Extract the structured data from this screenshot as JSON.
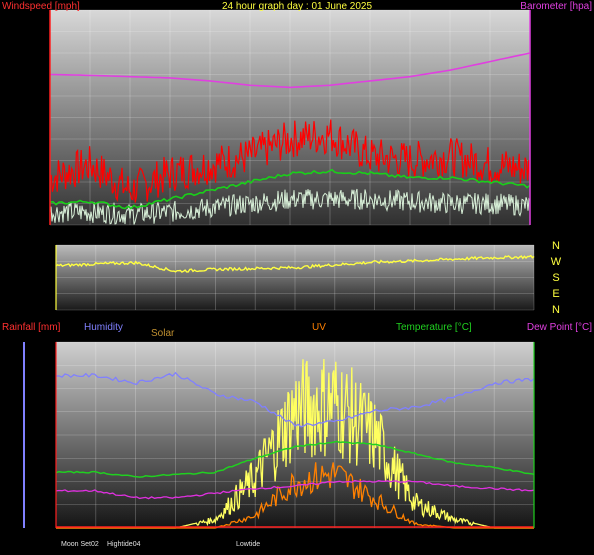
{
  "title": "24 hour graph day : 01 June 2025",
  "colors": {
    "wind": "#ff2020",
    "gust": "#ff0000",
    "avg": "#19d019",
    "low": "#d8f0d8",
    "baro": "#e040e0",
    "dir": "#ffff40",
    "humidity": "#8080ff",
    "solar": "#ffff60",
    "uv": "#ff8000",
    "temp": "#20d020",
    "dew": "#e030e0",
    "rain": "#ff2020"
  },
  "labels": {
    "windspeed": "Windspeed [mph]",
    "barometer": "Barometer [hpa]",
    "rainfall": "Rainfall [mm]",
    "humidity": "Humidity",
    "solar": "Solar",
    "uv": "UV",
    "temperature": "Temperature [°C]",
    "dewpoint": "Dew Point [°C]",
    "compass": [
      "N",
      "W",
      "S",
      "E",
      "N"
    ],
    "bottom_notes": [
      "Moon Set",
      "02",
      "Hightide",
      "04",
      "Lowtide"
    ]
  },
  "chart_data": [
    {
      "type": "line",
      "title": "24 hour graph day : 01 June 2025",
      "ylabel": "Windspeed [mph]",
      "y2label": "Barometer [hpa]",
      "x_ticks": [
        "02",
        "04",
        "06",
        "08",
        "10",
        "12",
        "14",
        "16",
        "18",
        "20",
        "22",
        "00"
      ],
      "ylim": [
        0,
        50
      ],
      "yticks": [
        0,
        5,
        10,
        15,
        20,
        25,
        30,
        35,
        40,
        45,
        50
      ],
      "y2lim": [
        975,
        1025
      ],
      "y2ticks": [
        975,
        980,
        985,
        990,
        995,
        1000,
        1005,
        1010,
        1015,
        1020,
        1025
      ],
      "x_hours": [
        0,
        2,
        4,
        6,
        8,
        10,
        12,
        14,
        16,
        18,
        20,
        22,
        24
      ],
      "series": [
        {
          "key": "gust",
          "values": [
            11,
            14,
            8,
            12,
            14,
            16,
            20,
            21,
            16,
            15,
            16,
            14,
            13
          ]
        },
        {
          "key": "avg",
          "values": [
            5,
            5.5,
            4,
            6,
            8,
            10,
            12,
            12.5,
            12,
            11,
            11,
            10,
            9
          ]
        },
        {
          "key": "low",
          "values": [
            3,
            3,
            2.5,
            3,
            4,
            5,
            6,
            6,
            6,
            5.5,
            5,
            5,
            4.5
          ]
        },
        {
          "key": "baro",
          "values": [
            1010,
            1009.8,
            1009.5,
            1009.2,
            1008.5,
            1007.5,
            1007,
            1007.5,
            1008.5,
            1009.5,
            1011,
            1013,
            1015
          ]
        }
      ]
    },
    {
      "type": "line",
      "ylim": [
        0,
        360
      ],
      "yticks": [
        0,
        90,
        180,
        270,
        360
      ],
      "x_hours": [
        0,
        2,
        4,
        6,
        8,
        10,
        12,
        14,
        16,
        18,
        20,
        22,
        24
      ],
      "series": [
        {
          "key": "dir",
          "values": [
            245,
            255,
            262,
            215,
            225,
            230,
            235,
            250,
            265,
            272,
            282,
            290,
            295
          ]
        }
      ]
    },
    {
      "type": "line",
      "y_humidity_lim": [
        0,
        100
      ],
      "y_humidity_ticks": [
        0,
        10,
        20,
        30,
        40,
        50,
        60,
        70,
        80,
        90,
        100
      ],
      "y_rain_lim": [
        0,
        30
      ],
      "y_rain_ticks": [
        0,
        5,
        10,
        15,
        20,
        25,
        30
      ],
      "y_temp_lim": [
        0,
        40
      ],
      "y_temp_ticks": [
        0,
        5,
        10,
        15,
        20,
        25,
        30,
        35,
        40
      ],
      "x_hours": [
        0,
        2,
        4,
        6,
        8,
        10,
        12,
        14,
        16,
        18,
        20,
        22,
        24
      ],
      "series": [
        {
          "key": "humidity",
          "axis": "humidity",
          "values": [
            82,
            82,
            78,
            83,
            72,
            68,
            55,
            57,
            63,
            65,
            70,
            78,
            80
          ]
        },
        {
          "key": "solar",
          "axis": "temp",
          "values": [
            0,
            0,
            0,
            0,
            2,
            12,
            28,
            30,
            22,
            6,
            2,
            0,
            0
          ]
        },
        {
          "key": "uv",
          "axis": "temp",
          "values": [
            0,
            0,
            0,
            0,
            0,
            3,
            11,
            13,
            7,
            1,
            0,
            0,
            0
          ]
        },
        {
          "key": "temp",
          "axis": "temp",
          "values": [
            12,
            12,
            11,
            11.5,
            12,
            15,
            17.5,
            18.5,
            18,
            16,
            14,
            13,
            11.5
          ]
        },
        {
          "key": "dew",
          "axis": "temp",
          "values": [
            8,
            8,
            6.5,
            6.5,
            7.5,
            8.5,
            9,
            10,
            10,
            10,
            9,
            8.5,
            8
          ]
        },
        {
          "key": "rain",
          "axis": "rain",
          "values": [
            0,
            0,
            0,
            0,
            0,
            0,
            0,
            0,
            0,
            0,
            0,
            0,
            0
          ]
        }
      ]
    }
  ]
}
